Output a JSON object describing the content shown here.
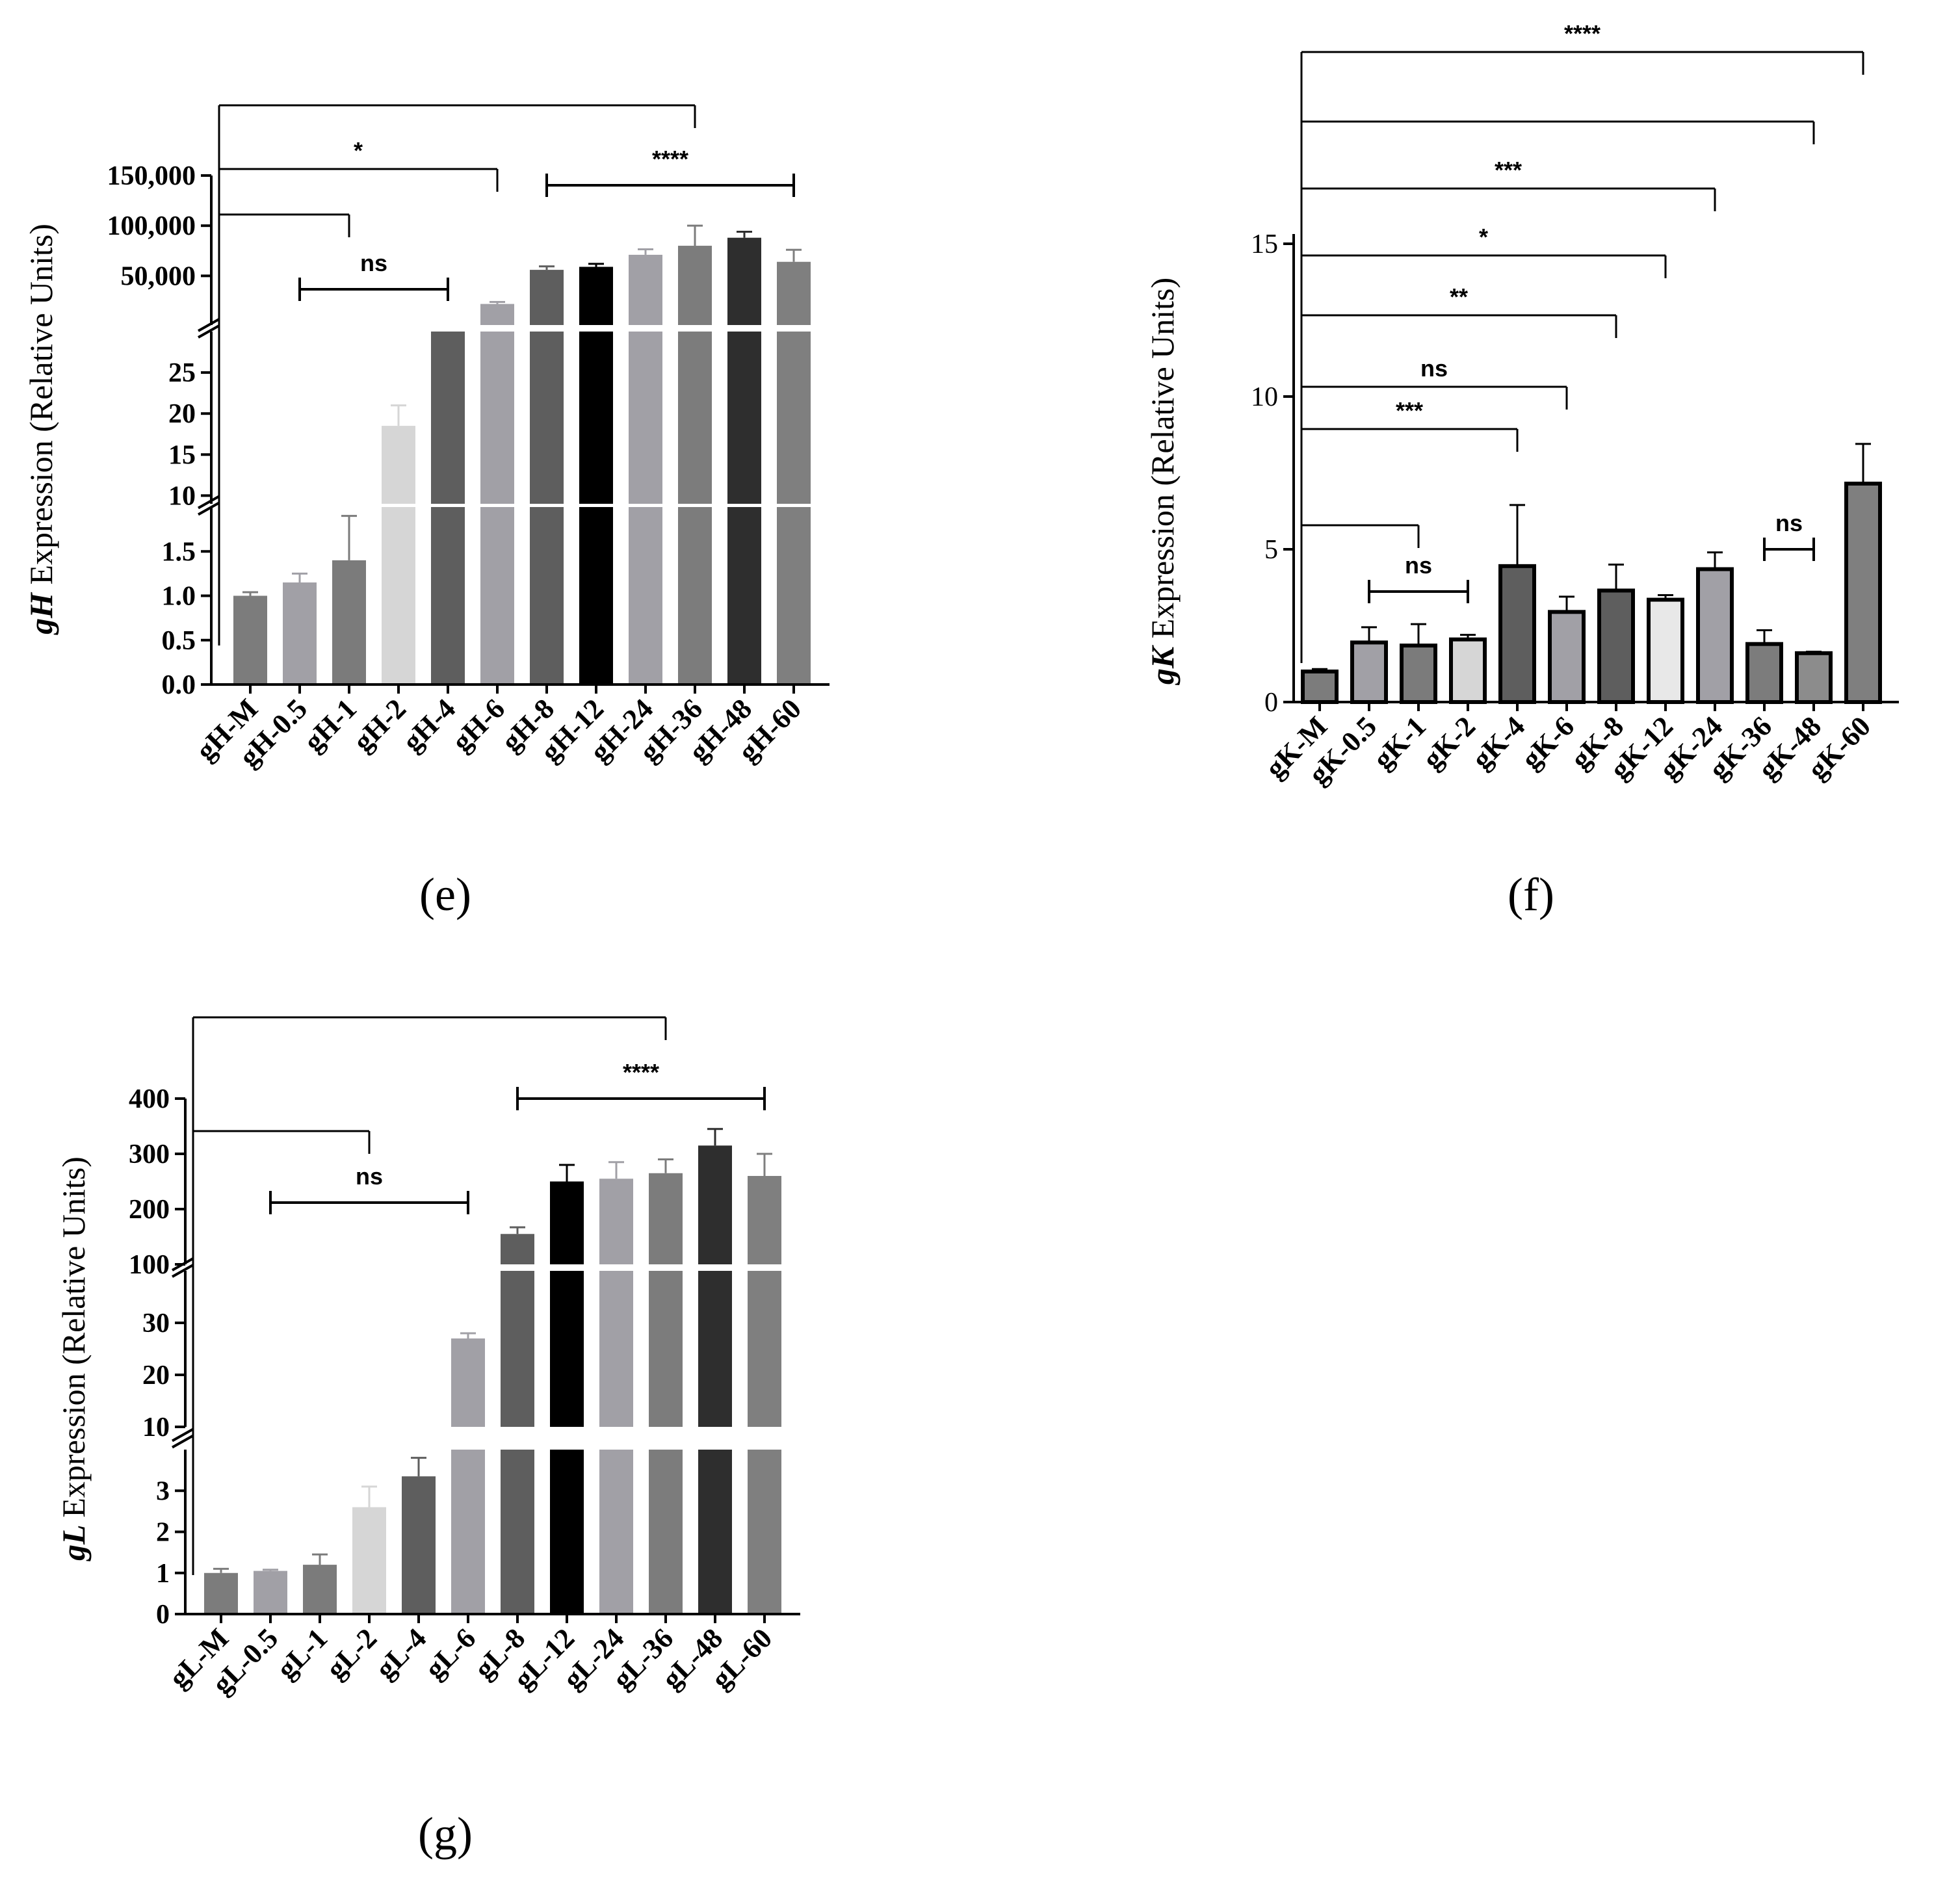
{
  "chart_data": [
    {
      "panel": "(e)",
      "type": "bar",
      "ylabel_gene": "gH",
      "ylabel_rest": "Expression (Relative Units)",
      "categories": [
        "gH-M",
        "gH-0.5",
        "gH-1",
        "gH-2",
        "gH-4",
        "gH-6",
        "gH-8",
        "gH-12",
        "gH-24",
        "gH-36",
        "gH-48",
        "gH-60"
      ],
      "values": [
        1.0,
        1.15,
        1.4,
        18.5,
        1000,
        22000,
        56000,
        59000,
        71000,
        80000,
        88000,
        64000
      ],
      "errors": [
        0.04,
        0.1,
        0.5,
        2.5,
        0,
        2000,
        3500,
        3000,
        5500,
        20000,
        6000,
        12000
      ],
      "colors": [
        "#7c7c7c",
        "#a1a0a6",
        "#7b7b7b",
        "#d6d6d6",
        "#5e5e5e",
        "#a1a0a6",
        "#5e5e5e",
        "#000000",
        "#a1a0a6",
        "#7c7c7c",
        "#2e2e2e",
        "#7f7f7f"
      ],
      "axis_segments": [
        {
          "ylim": [
            0,
            2
          ],
          "ticks": [
            0.0,
            0.5,
            1.0,
            1.5
          ],
          "tick_labels": [
            "0.0",
            "0.5",
            "1.0",
            "1.5"
          ]
        },
        {
          "ylim": [
            9,
            30
          ],
          "ticks": [
            10,
            15,
            20,
            25
          ],
          "tick_labels": [
            "10",
            "15",
            "20",
            "25"
          ]
        },
        {
          "ylim": [
            1000,
            150000
          ],
          "ticks": [
            50000,
            100000,
            150000
          ],
          "tick_labels": [
            "50,000",
            "100,000",
            "150,000"
          ]
        }
      ],
      "annotations": [
        {
          "label": "ns",
          "type": "bar",
          "from": 1,
          "to": 4
        },
        {
          "label": "",
          "type": "ref",
          "from": 0,
          "to": 2
        },
        {
          "label": "*",
          "type": "ref",
          "from": 0,
          "to": 5
        },
        {
          "label": "****",
          "type": "bar",
          "from": 6,
          "to": 11
        },
        {
          "label": "",
          "type": "ref",
          "from": 0,
          "to": 9
        }
      ]
    },
    {
      "panel": "(f)",
      "type": "bar",
      "ylabel_gene": "gK",
      "ylabel_rest": "Expression (Relative Units)",
      "categories": [
        "gK-M",
        "gK-0.5",
        "gK-1",
        "gK-2",
        "gK-4",
        "gK-6",
        "gK-8",
        "gK-12",
        "gK-24",
        "gK-36",
        "gK-48",
        "gK-60"
      ],
      "values": [
        1.0,
        1.95,
        1.85,
        2.05,
        4.45,
        2.95,
        3.65,
        3.35,
        4.35,
        1.9,
        1.6,
        7.15
      ],
      "errors": [
        0.08,
        0.5,
        0.7,
        0.15,
        2.0,
        0.5,
        0.85,
        0.15,
        0.55,
        0.45,
        0.05,
        1.3
      ],
      "colors": [
        "#7c7c7c",
        "#a1a0a6",
        "#7b7b7b",
        "#d6d6d6",
        "#5e5e5e",
        "#a1a0a6",
        "#5e5e5e",
        "#e8e8e8",
        "#a1a0a6",
        "#7c7c7c",
        "#8c8c8c",
        "#7f7f7f"
      ],
      "ylim": [
        0,
        20
      ],
      "ticks": [
        0,
        5,
        10,
        15
      ],
      "tick_labels": [
        "0",
        "5",
        "10",
        "15"
      ],
      "annotations": [
        {
          "label": "ns",
          "type": "bar",
          "from": 1,
          "to": 3
        },
        {
          "label": "",
          "type": "ref",
          "from": 0,
          "to": 2
        },
        {
          "label": "***",
          "type": "ref",
          "from": 0,
          "to": 4
        },
        {
          "label": "ns",
          "type": "ref",
          "from": 0,
          "to": 5
        },
        {
          "label": "**",
          "type": "ref",
          "from": 0,
          "to": 6
        },
        {
          "label": "*",
          "type": "ref",
          "from": 0,
          "to": 7
        },
        {
          "label": "***",
          "type": "ref",
          "from": 0,
          "to": 8
        },
        {
          "label": "",
          "type": "ref",
          "from": 0,
          "to": 10
        },
        {
          "label": "ns",
          "type": "bar",
          "from": 9,
          "to": 10
        },
        {
          "label": "****",
          "type": "ref",
          "from": 0,
          "to": 11
        }
      ]
    },
    {
      "panel": "(g)",
      "type": "bar",
      "ylabel_gene": "gL",
      "ylabel_rest": "Expression (Relative Units)",
      "categories": [
        "gL-M",
        "gL-0.5",
        "gL-1",
        "gL-2",
        "gL-4",
        "gL-6",
        "gL-8",
        "gL-12",
        "gL-24",
        "gL-36",
        "gL-48",
        "gL-60"
      ],
      "values": [
        1.0,
        1.05,
        1.2,
        2.6,
        3.35,
        27.0,
        155,
        250,
        255,
        265,
        315,
        260
      ],
      "errors": [
        0.1,
        0.03,
        0.25,
        0.5,
        0.45,
        1.0,
        12,
        30,
        30,
        25,
        30,
        40
      ],
      "colors": [
        "#7c7c7c",
        "#a1a0a6",
        "#7b7b7b",
        "#d6d6d6",
        "#5e5e5e",
        "#a1a0a6",
        "#5e5e5e",
        "#000000",
        "#a1a0a6",
        "#7c7c7c",
        "#2e2e2e",
        "#7f7f7f"
      ],
      "axis_segments": [
        {
          "ylim": [
            0,
            4
          ],
          "ticks": [
            0,
            1,
            2,
            3
          ],
          "tick_labels": [
            "0",
            "1",
            "2",
            "3"
          ]
        },
        {
          "ylim": [
            10,
            40
          ],
          "ticks": [
            10,
            20,
            30
          ],
          "tick_labels": [
            "10",
            "20",
            "30"
          ]
        },
        {
          "ylim": [
            100,
            400
          ],
          "ticks": [
            100,
            200,
            300,
            400
          ],
          "tick_labels": [
            "100",
            "200",
            "300",
            "400"
          ]
        }
      ],
      "annotations": [
        {
          "label": "ns",
          "type": "bar",
          "from": 1,
          "to": 5
        },
        {
          "label": "",
          "type": "ref",
          "from": 0,
          "to": 3
        },
        {
          "label": "****",
          "type": "bar",
          "from": 6,
          "to": 11
        },
        {
          "label": "",
          "type": "ref",
          "from": 0,
          "to": 9
        }
      ]
    }
  ]
}
